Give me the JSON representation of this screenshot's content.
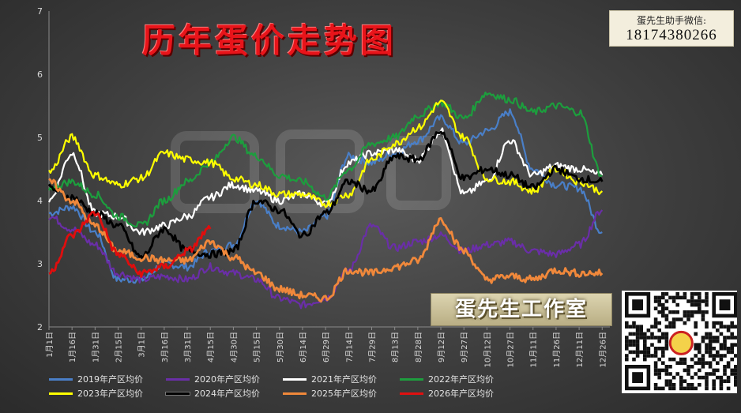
{
  "contact": {
    "label": "蛋先生助手微信:",
    "number": "18174380266"
  },
  "studio_label": "蛋先生工作室",
  "chart_data": {
    "type": "line",
    "title": "历年蛋价走势图",
    "xlabel": "",
    "ylabel": "",
    "ylim": [
      2,
      7
    ],
    "yticks": [
      2,
      3,
      4,
      5,
      6,
      7
    ],
    "grid": false,
    "legend": "bottom",
    "xticks": [
      "1月1日",
      "1月16日",
      "1月31日",
      "2月15日",
      "3月1日",
      "3月16日",
      "3月31日",
      "4月15日",
      "4月30日",
      "5月15日",
      "5月30日",
      "6月14日",
      "6月29日",
      "7月14日",
      "7月29日",
      "8月13日",
      "8月28日",
      "9月12日",
      "9月27日",
      "10月12日",
      "10月27日",
      "11月11日",
      "11月26日",
      "12月11日",
      "12月26日"
    ],
    "x": [
      0,
      15,
      30,
      45,
      60,
      75,
      90,
      105,
      120,
      135,
      150,
      165,
      180,
      195,
      210,
      225,
      240,
      255,
      270,
      285,
      300,
      315,
      330,
      345,
      360
    ],
    "series": [
      {
        "name": "2019年产区均价",
        "color": "#4a7fc8",
        "values": [
          3.8,
          3.9,
          3.5,
          2.75,
          2.75,
          3.0,
          2.95,
          3.2,
          3.3,
          4.0,
          3.6,
          3.5,
          3.75,
          4.7,
          4.6,
          4.75,
          4.95,
          5.3,
          4.9,
          5.1,
          5.4,
          4.5,
          4.25,
          4.2,
          3.5
        ]
      },
      {
        "name": "2020年产区均价",
        "color": "#6a2fa8",
        "values": [
          3.75,
          3.55,
          3.3,
          2.85,
          2.75,
          2.8,
          2.75,
          2.95,
          2.85,
          2.75,
          2.45,
          2.35,
          2.45,
          2.9,
          3.6,
          3.25,
          3.35,
          3.45,
          3.2,
          3.3,
          3.35,
          3.2,
          3.15,
          3.3,
          3.85
        ]
      },
      {
        "name": "2021年产区均价",
        "color": "#ffffff",
        "values": [
          4.0,
          4.75,
          3.8,
          3.75,
          3.5,
          3.6,
          3.75,
          4.05,
          4.25,
          4.15,
          4.0,
          4.1,
          3.95,
          4.6,
          4.75,
          4.8,
          4.65,
          5.1,
          4.1,
          4.3,
          4.95,
          4.4,
          4.55,
          4.5,
          4.4
        ]
      },
      {
        "name": "2022年产区均价",
        "color": "#1e9e3e",
        "values": [
          4.2,
          4.3,
          4.1,
          3.75,
          3.6,
          4.0,
          4.3,
          4.6,
          5.0,
          4.7,
          4.4,
          4.3,
          4.05,
          4.5,
          4.9,
          5.0,
          5.35,
          5.55,
          5.3,
          5.7,
          5.6,
          5.4,
          5.5,
          5.4,
          4.4
        ]
      },
      {
        "name": "2023年产区均价",
        "color": "#ffff00",
        "values": [
          4.45,
          5.0,
          4.4,
          4.25,
          4.35,
          4.75,
          4.65,
          4.6,
          4.35,
          4.25,
          4.1,
          4.1,
          3.95,
          4.1,
          4.65,
          4.9,
          5.15,
          5.55,
          5.0,
          4.35,
          4.3,
          4.15,
          4.5,
          4.3,
          4.15
        ]
      },
      {
        "name": "2024年产区均价",
        "color": "#000000",
        "values": [
          4.2,
          4.05,
          3.8,
          3.6,
          3.1,
          3.55,
          3.2,
          3.15,
          3.2,
          4.0,
          3.85,
          3.45,
          3.8,
          4.3,
          4.15,
          4.7,
          4.65,
          5.1,
          4.35,
          4.5,
          4.4,
          4.2,
          4.5,
          4.35,
          4.3
        ]
      },
      {
        "name": "2025年产区均价",
        "color": "#f0883a",
        "values": [
          4.3,
          4.0,
          3.6,
          3.2,
          3.1,
          3.05,
          3.05,
          3.35,
          3.1,
          2.85,
          2.6,
          2.5,
          2.45,
          2.9,
          2.85,
          2.95,
          3.05,
          3.7,
          3.2,
          2.75,
          2.8,
          2.75,
          2.9,
          2.85,
          2.85
        ]
      },
      {
        "name": "2026年产区均价",
        "color": "#e01010",
        "values": [
          2.85,
          3.45,
          3.8,
          3.15,
          2.85,
          2.95,
          3.2,
          3.55,
          null,
          null,
          null,
          null,
          null,
          null,
          null,
          null,
          null,
          null,
          null,
          null,
          null,
          null,
          null,
          null,
          null
        ]
      }
    ]
  }
}
